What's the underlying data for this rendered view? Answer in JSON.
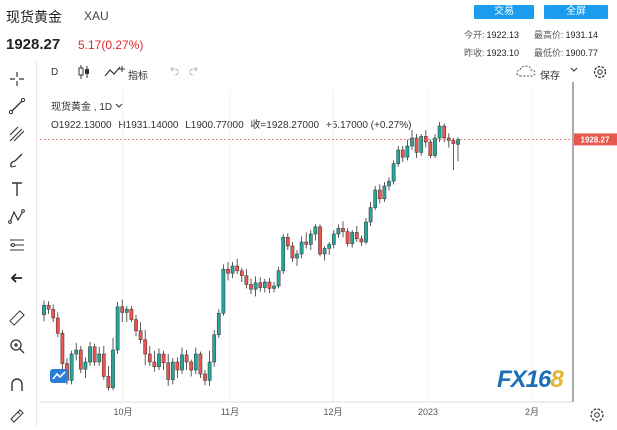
{
  "header": {
    "title": "现货黄金",
    "symbol": "XAU",
    "price": "1928.27",
    "change": "5.17(0.27%)",
    "buttons": [
      "交易",
      "全屏"
    ],
    "stats": [
      {
        "label": "今开:",
        "value": "1922.13"
      },
      {
        "label": "最高价:",
        "value": "1931.14"
      },
      {
        "label": "昨收:",
        "value": "1923.10"
      },
      {
        "label": "最低价:",
        "value": "1900.77"
      }
    ]
  },
  "toolbar": {
    "interval": "D",
    "indicators": "指标",
    "save": "保存"
  },
  "legend": {
    "symbol": "现货黄金 , 1D",
    "open": "O1922.13000",
    "high": "H1931.14000",
    "low": "L1900.77000",
    "close": "收=1928.27000",
    "change": "+5.17000 (+0.27%)"
  },
  "colors": {
    "up": "#26a69a",
    "down": "#ef5350",
    "accent": "#1a9cf0",
    "lastprice": "#e55a4e"
  },
  "watermark": {
    "text1": "FX16",
    "text2": "8"
  },
  "chart_data": {
    "type": "candlestick",
    "title": "现货黄金 , 1D",
    "last_price": 1928.27,
    "last_price_label": "1928.27",
    "x_tick_labels": [
      "10月",
      "11月",
      "12月",
      "2023",
      "2月"
    ],
    "ylim": [
      1600,
      1990
    ],
    "candles": [
      [
        1709,
        1727,
        1701,
        1721
      ],
      [
        1721,
        1726,
        1710,
        1716
      ],
      [
        1716,
        1722,
        1700,
        1705
      ],
      [
        1705,
        1712,
        1681,
        1686
      ],
      [
        1686,
        1690,
        1641,
        1648
      ],
      [
        1648,
        1655,
        1622,
        1627
      ],
      [
        1627,
        1664,
        1622,
        1660
      ],
      [
        1660,
        1674,
        1652,
        1665
      ],
      [
        1665,
        1670,
        1636,
        1641
      ],
      [
        1641,
        1656,
        1630,
        1650
      ],
      [
        1650,
        1675,
        1645,
        1669
      ],
      [
        1669,
        1673,
        1645,
        1650
      ],
      [
        1650,
        1669,
        1645,
        1660
      ],
      [
        1660,
        1670,
        1628,
        1632
      ],
      [
        1632,
        1645,
        1614,
        1618
      ],
      [
        1618,
        1680,
        1615,
        1665
      ],
      [
        1665,
        1725,
        1660,
        1719
      ],
      [
        1719,
        1728,
        1700,
        1712
      ],
      [
        1712,
        1720,
        1700,
        1716
      ],
      [
        1716,
        1720,
        1700,
        1703
      ],
      [
        1703,
        1709,
        1682,
        1689
      ],
      [
        1689,
        1700,
        1673,
        1678
      ],
      [
        1678,
        1690,
        1646,
        1660
      ],
      [
        1660,
        1670,
        1645,
        1650
      ],
      [
        1650,
        1664,
        1638,
        1644
      ],
      [
        1644,
        1667,
        1640,
        1660
      ],
      [
        1660,
        1664,
        1640,
        1649
      ],
      [
        1649,
        1660,
        1620,
        1628
      ],
      [
        1628,
        1655,
        1622,
        1650
      ],
      [
        1650,
        1656,
        1630,
        1640
      ],
      [
        1640,
        1668,
        1635,
        1659
      ],
      [
        1659,
        1665,
        1640,
        1650
      ],
      [
        1650,
        1653,
        1632,
        1640
      ],
      [
        1640,
        1668,
        1635,
        1660
      ],
      [
        1660,
        1663,
        1630,
        1635
      ],
      [
        1635,
        1640,
        1621,
        1627
      ],
      [
        1627,
        1664,
        1620,
        1650
      ],
      [
        1650,
        1690,
        1644,
        1684
      ],
      [
        1684,
        1716,
        1680,
        1711
      ],
      [
        1711,
        1772,
        1708,
        1766
      ],
      [
        1766,
        1775,
        1752,
        1761
      ],
      [
        1761,
        1775,
        1755,
        1770
      ],
      [
        1770,
        1779,
        1760,
        1764
      ],
      [
        1764,
        1768,
        1750,
        1758
      ],
      [
        1758,
        1766,
        1742,
        1747
      ],
      [
        1747,
        1754,
        1735,
        1741
      ],
      [
        1741,
        1757,
        1732,
        1749
      ],
      [
        1749,
        1756,
        1738,
        1743
      ],
      [
        1743,
        1754,
        1737,
        1750
      ],
      [
        1750,
        1755,
        1736,
        1742
      ],
      [
        1742,
        1750,
        1737,
        1745
      ],
      [
        1745,
        1769,
        1742,
        1764
      ],
      [
        1764,
        1810,
        1760,
        1806
      ],
      [
        1806,
        1811,
        1790,
        1795
      ],
      [
        1795,
        1800,
        1775,
        1780
      ],
      [
        1780,
        1790,
        1770,
        1785
      ],
      [
        1785,
        1807,
        1780,
        1800
      ],
      [
        1800,
        1812,
        1792,
        1797
      ],
      [
        1797,
        1815,
        1790,
        1810
      ],
      [
        1810,
        1822,
        1802,
        1819
      ],
      [
        1819,
        1822,
        1782,
        1785
      ],
      [
        1785,
        1795,
        1777,
        1792
      ],
      [
        1792,
        1800,
        1784,
        1797
      ],
      [
        1797,
        1815,
        1792,
        1810
      ],
      [
        1810,
        1822,
        1805,
        1817
      ],
      [
        1817,
        1826,
        1806,
        1813
      ],
      [
        1813,
        1817,
        1794,
        1798
      ],
      [
        1798,
        1815,
        1793,
        1812
      ],
      [
        1812,
        1820,
        1800,
        1804
      ],
      [
        1804,
        1808,
        1795,
        1800
      ],
      [
        1800,
        1830,
        1797,
        1825
      ],
      [
        1825,
        1850,
        1820,
        1843
      ],
      [
        1843,
        1870,
        1840,
        1865
      ],
      [
        1865,
        1872,
        1848,
        1854
      ],
      [
        1854,
        1875,
        1850,
        1870
      ],
      [
        1870,
        1881,
        1864,
        1876
      ],
      [
        1876,
        1902,
        1872,
        1898
      ],
      [
        1898,
        1920,
        1894,
        1915
      ],
      [
        1915,
        1920,
        1900,
        1906
      ],
      [
        1906,
        1928,
        1902,
        1920
      ],
      [
        1920,
        1940,
        1915,
        1930
      ],
      [
        1930,
        1935,
        1905,
        1912
      ],
      [
        1912,
        1935,
        1908,
        1932
      ],
      [
        1932,
        1940,
        1918,
        1925
      ],
      [
        1925,
        1928,
        1905,
        1908
      ],
      [
        1908,
        1935,
        1905,
        1930
      ],
      [
        1930,
        1950,
        1925,
        1945
      ],
      [
        1945,
        1948,
        1925,
        1930
      ],
      [
        1930,
        1936,
        1918,
        1927
      ],
      [
        1927,
        1930,
        1890,
        1923
      ],
      [
        1922.13,
        1931.14,
        1900.77,
        1928.27
      ]
    ]
  }
}
